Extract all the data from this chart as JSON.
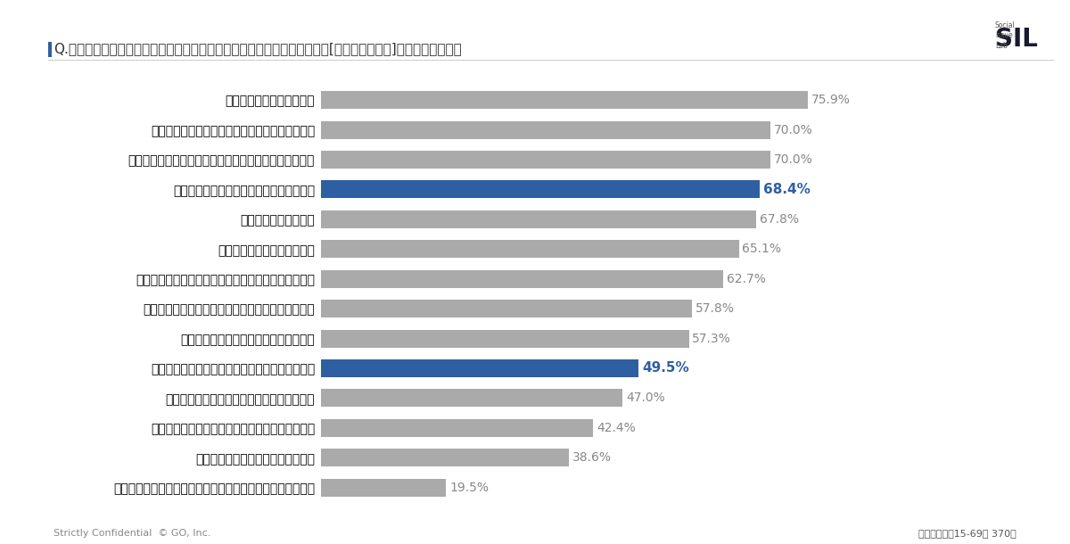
{
  "title": "Q.誹謗中傷の言葉を見聞きしたとき、以下のようなことを思いましたか。[あてはまる・計]（被害者ベース）",
  "categories": [
    "なんでこんなことを言ってしまったのだろうと自分を責めた",
    "自分に自信がなくなり悲しくなった",
    "周りからどう思われているだろうと不安になった",
    "どう対応したらよいか分からなくて困惑した",
    "受け流すことができず、しばらくの間ひきずった",
    "事実と異なる内容だったので腹が立った",
    "事実と異なる内容だったのでやるせない思いがした",
    "こんなにひどいことを言う人がいるんだと怖くなった",
    "余計なお世話だと腹が立った",
    "的外れな内容で呆れた",
    "生きづらい、嫌な世の中になったと感じた",
    "こんなにひどいことを言う人がいるんだと悲しくなった",
    "誹謗中傷を受けると思っていなかったので驚いた",
    "絡まれて面倒くさく感じた"
  ],
  "values": [
    19.5,
    38.6,
    42.4,
    47.0,
    49.5,
    57.3,
    57.8,
    62.7,
    65.1,
    67.8,
    68.4,
    70.0,
    70.0,
    75.9
  ],
  "highlight_indices": [
    4,
    10
  ],
  "bar_color_default": "#AAAAAA",
  "bar_color_highlight": "#2E5FA3",
  "value_color_default": "#888888",
  "value_color_highlight": "#2E5FA3",
  "xlabel": "",
  "ylabel": "",
  "xlim": [
    0,
    100
  ],
  "background_color": "#FFFFFF",
  "title_fontsize": 11,
  "bar_label_fontsize": 10,
  "value_fontsize": 11,
  "footer_left": "Strictly Confidential  © GO, Inc.",
  "footer_right": "被害者：男女15-69歳 370人",
  "accent_color": "#2E5FA3",
  "title_bar_color": "#2E5FA3"
}
